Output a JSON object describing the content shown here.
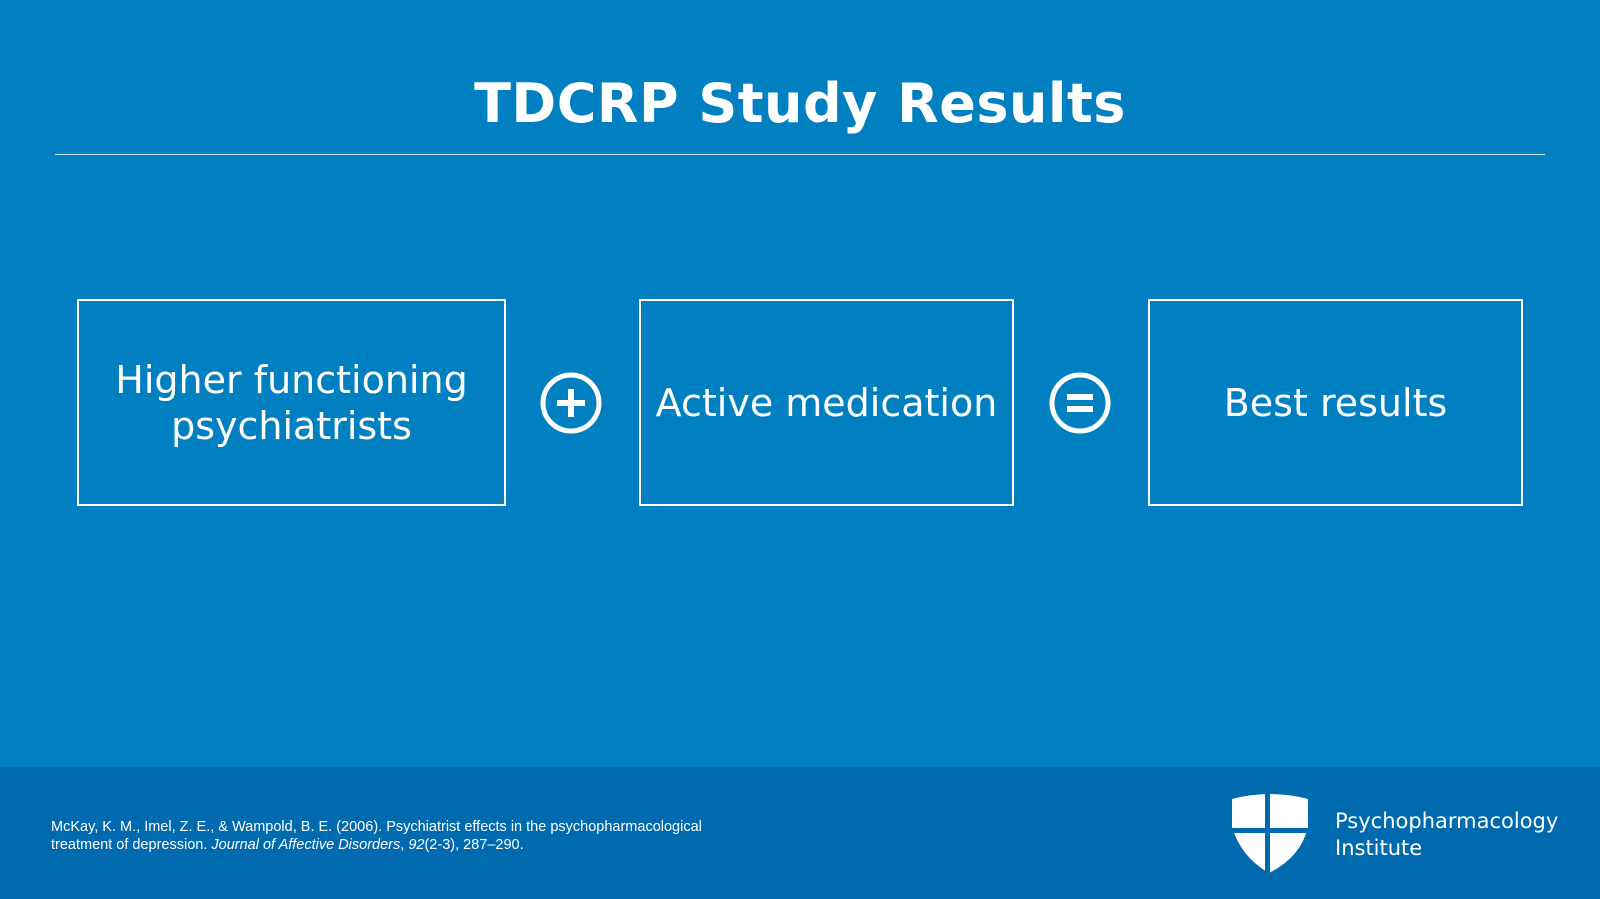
{
  "slide": {
    "title": "TDCRP Study Results"
  },
  "equation": {
    "boxes": [
      {
        "label": "Higher functioning\npsychiatrists"
      },
      {
        "label": "Active medication"
      },
      {
        "label": "Best results"
      }
    ],
    "operators": [
      {
        "icon": "plus-circle-icon"
      },
      {
        "icon": "equals-circle-icon"
      }
    ]
  },
  "citation": {
    "line1": "McKay, K. M., Imel, Z. E., & Wampold, B. E. (2006). Psychiatrist effects in the psychopharmacological",
    "line2_prefix": "treatment of depression. ",
    "journal": "Journal of Affective Disorders",
    "line2_sep": ", ",
    "volume": "92",
    "line2_suffix": "(2-3), 287–290."
  },
  "logo": {
    "line1": "Psychopharmacology",
    "line2": "Institute",
    "icon": "shield-icon"
  },
  "colors": {
    "background": "#0080c1",
    "footer": "#006aaf",
    "foreground": "#ffffff"
  }
}
